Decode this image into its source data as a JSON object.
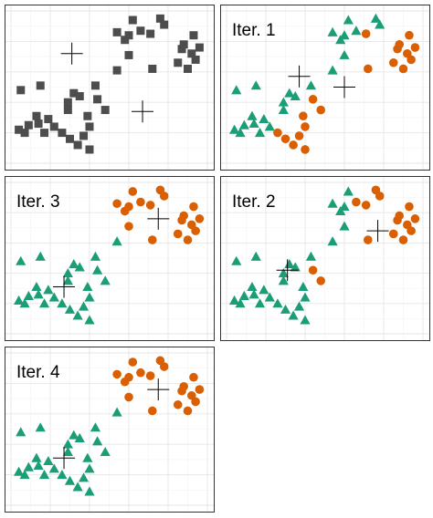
{
  "colors": {
    "unassigned": "#4d4d4d",
    "cluster_1": "#1b9e77",
    "cluster_2": "#d95f02",
    "centroid": "#000000"
  },
  "chart_data": [
    {
      "type": "scatter",
      "label": "",
      "xlim": [
        0,
        10
      ],
      "ylim": [
        0,
        10
      ],
      "grid": true,
      "points": [
        {
          "x": 0.4,
          "y": 2.2,
          "c": 0
        },
        {
          "x": 0.9,
          "y": 2.5,
          "c": 0
        },
        {
          "x": 1.4,
          "y": 2.6,
          "c": 0
        },
        {
          "x": 1.7,
          "y": 2.0,
          "c": 0
        },
        {
          "x": 1.3,
          "y": 3.1,
          "c": 0
        },
        {
          "x": 1.9,
          "y": 2.9,
          "c": 0
        },
        {
          "x": 0.7,
          "y": 2.0,
          "c": 0
        },
        {
          "x": 2.2,
          "y": 2.4,
          "c": 0
        },
        {
          "x": 2.6,
          "y": 2.0,
          "c": 0
        },
        {
          "x": 3.0,
          "y": 1.6,
          "c": 0
        },
        {
          "x": 3.4,
          "y": 1.2,
          "c": 0
        },
        {
          "x": 3.7,
          "y": 1.8,
          "c": 0
        },
        {
          "x": 4.0,
          "y": 0.9,
          "c": 0
        },
        {
          "x": 4.0,
          "y": 2.4,
          "c": 0
        },
        {
          "x": 2.9,
          "y": 3.5,
          "c": 0
        },
        {
          "x": 3.2,
          "y": 4.6,
          "c": 0
        },
        {
          "x": 2.9,
          "y": 4.0,
          "c": 0
        },
        {
          "x": 3.5,
          "y": 4.4,
          "c": 0
        },
        {
          "x": 3.9,
          "y": 3.1,
          "c": 0
        },
        {
          "x": 4.4,
          "y": 4.2,
          "c": 0
        },
        {
          "x": 4.8,
          "y": 3.5,
          "c": 0
        },
        {
          "x": 0.5,
          "y": 4.8,
          "c": 0
        },
        {
          "x": 1.5,
          "y": 5.1,
          "c": 0
        },
        {
          "x": 4.3,
          "y": 5.1,
          "c": 0
        },
        {
          "x": 5.4,
          "y": 6.1,
          "c": 0
        },
        {
          "x": 6.0,
          "y": 7.1,
          "c": 0
        },
        {
          "x": 5.8,
          "y": 8.1,
          "c": 0
        },
        {
          "x": 5.4,
          "y": 8.6,
          "c": 0
        },
        {
          "x": 6.6,
          "y": 8.7,
          "c": 0
        },
        {
          "x": 6.2,
          "y": 9.4,
          "c": 0
        },
        {
          "x": 7.1,
          "y": 8.5,
          "c": 0
        },
        {
          "x": 7.6,
          "y": 9.5,
          "c": 0
        },
        {
          "x": 7.8,
          "y": 9.1,
          "c": 0
        },
        {
          "x": 8.7,
          "y": 7.5,
          "c": 0
        },
        {
          "x": 8.5,
          "y": 6.6,
          "c": 0
        },
        {
          "x": 8.8,
          "y": 7.8,
          "c": 0
        },
        {
          "x": 9.3,
          "y": 8.4,
          "c": 0
        },
        {
          "x": 9.0,
          "y": 6.2,
          "c": 0
        },
        {
          "x": 9.2,
          "y": 7.2,
          "c": 0
        },
        {
          "x": 9.4,
          "y": 6.8,
          "c": 0
        },
        {
          "x": 9.6,
          "y": 7.6,
          "c": 0
        },
        {
          "x": 7.2,
          "y": 6.2,
          "c": 0
        },
        {
          "x": 6.0,
          "y": 8.4,
          "c": 0
        }
      ],
      "centroids": [
        {
          "x": 3.1,
          "y": 7.2
        },
        {
          "x": 6.7,
          "y": 3.4
        }
      ]
    },
    {
      "type": "scatter",
      "label": "Iter. 1",
      "xlim": [
        0,
        10
      ],
      "ylim": [
        0,
        10
      ],
      "grid": true,
      "points": [
        {
          "x": 0.4,
          "y": 2.2,
          "c": 1
        },
        {
          "x": 0.9,
          "y": 2.5,
          "c": 1
        },
        {
          "x": 1.4,
          "y": 2.6,
          "c": 1
        },
        {
          "x": 1.7,
          "y": 2.0,
          "c": 1
        },
        {
          "x": 1.3,
          "y": 3.1,
          "c": 1
        },
        {
          "x": 1.9,
          "y": 2.9,
          "c": 1
        },
        {
          "x": 0.7,
          "y": 2.0,
          "c": 1
        },
        {
          "x": 2.2,
          "y": 2.4,
          "c": 1
        },
        {
          "x": 2.6,
          "y": 2.0,
          "c": 2
        },
        {
          "x": 3.0,
          "y": 1.6,
          "c": 2
        },
        {
          "x": 3.4,
          "y": 1.2,
          "c": 2
        },
        {
          "x": 3.7,
          "y": 1.8,
          "c": 2
        },
        {
          "x": 4.0,
          "y": 0.9,
          "c": 2
        },
        {
          "x": 4.0,
          "y": 2.4,
          "c": 2
        },
        {
          "x": 2.9,
          "y": 3.5,
          "c": 1
        },
        {
          "x": 3.2,
          "y": 4.6,
          "c": 1
        },
        {
          "x": 2.9,
          "y": 4.0,
          "c": 1
        },
        {
          "x": 3.5,
          "y": 4.4,
          "c": 1
        },
        {
          "x": 3.9,
          "y": 3.1,
          "c": 2
        },
        {
          "x": 4.4,
          "y": 4.2,
          "c": 2
        },
        {
          "x": 4.8,
          "y": 3.5,
          "c": 2
        },
        {
          "x": 0.5,
          "y": 4.8,
          "c": 1
        },
        {
          "x": 1.5,
          "y": 5.1,
          "c": 1
        },
        {
          "x": 4.3,
          "y": 5.1,
          "c": 1
        },
        {
          "x": 5.4,
          "y": 6.1,
          "c": 1
        },
        {
          "x": 6.0,
          "y": 7.1,
          "c": 1
        },
        {
          "x": 5.8,
          "y": 8.1,
          "c": 1
        },
        {
          "x": 5.4,
          "y": 8.6,
          "c": 1
        },
        {
          "x": 6.6,
          "y": 8.7,
          "c": 1
        },
        {
          "x": 6.2,
          "y": 9.4,
          "c": 1
        },
        {
          "x": 7.1,
          "y": 8.5,
          "c": 2
        },
        {
          "x": 7.6,
          "y": 9.5,
          "c": 1
        },
        {
          "x": 7.8,
          "y": 9.1,
          "c": 1
        },
        {
          "x": 8.7,
          "y": 7.5,
          "c": 2
        },
        {
          "x": 8.5,
          "y": 6.6,
          "c": 2
        },
        {
          "x": 8.8,
          "y": 7.8,
          "c": 2
        },
        {
          "x": 9.3,
          "y": 8.4,
          "c": 2
        },
        {
          "x": 9.0,
          "y": 6.2,
          "c": 2
        },
        {
          "x": 9.2,
          "y": 7.2,
          "c": 2
        },
        {
          "x": 9.4,
          "y": 6.8,
          "c": 2
        },
        {
          "x": 9.6,
          "y": 7.6,
          "c": 2
        },
        {
          "x": 7.2,
          "y": 6.2,
          "c": 2
        },
        {
          "x": 6.0,
          "y": 8.4,
          "c": 1
        }
      ],
      "centroids": [
        {
          "x": 3.7,
          "y": 5.7
        },
        {
          "x": 6.0,
          "y": 5.0
        }
      ]
    },
    {
      "type": "scatter",
      "label": "Iter. 3",
      "xlim": [
        0,
        10
      ],
      "ylim": [
        0,
        10
      ],
      "grid": true,
      "points": [
        {
          "x": 0.4,
          "y": 2.2,
          "c": 1
        },
        {
          "x": 0.9,
          "y": 2.5,
          "c": 1
        },
        {
          "x": 1.4,
          "y": 2.6,
          "c": 1
        },
        {
          "x": 1.7,
          "y": 2.0,
          "c": 1
        },
        {
          "x": 1.3,
          "y": 3.1,
          "c": 1
        },
        {
          "x": 1.9,
          "y": 2.9,
          "c": 1
        },
        {
          "x": 0.7,
          "y": 2.0,
          "c": 1
        },
        {
          "x": 2.2,
          "y": 2.4,
          "c": 1
        },
        {
          "x": 2.6,
          "y": 2.0,
          "c": 1
        },
        {
          "x": 3.0,
          "y": 1.6,
          "c": 1
        },
        {
          "x": 3.4,
          "y": 1.2,
          "c": 1
        },
        {
          "x": 3.7,
          "y": 1.8,
          "c": 1
        },
        {
          "x": 4.0,
          "y": 0.9,
          "c": 1
        },
        {
          "x": 4.0,
          "y": 2.4,
          "c": 1
        },
        {
          "x": 2.9,
          "y": 3.5,
          "c": 1
        },
        {
          "x": 3.2,
          "y": 4.6,
          "c": 1
        },
        {
          "x": 2.9,
          "y": 4.0,
          "c": 1
        },
        {
          "x": 3.5,
          "y": 4.4,
          "c": 1
        },
        {
          "x": 3.9,
          "y": 3.1,
          "c": 1
        },
        {
          "x": 4.4,
          "y": 4.2,
          "c": 1
        },
        {
          "x": 4.8,
          "y": 3.5,
          "c": 1
        },
        {
          "x": 0.5,
          "y": 4.8,
          "c": 1
        },
        {
          "x": 1.5,
          "y": 5.1,
          "c": 1
        },
        {
          "x": 4.3,
          "y": 5.1,
          "c": 1
        },
        {
          "x": 5.4,
          "y": 6.1,
          "c": 1
        },
        {
          "x": 6.0,
          "y": 7.1,
          "c": 2
        },
        {
          "x": 5.8,
          "y": 8.1,
          "c": 2
        },
        {
          "x": 5.4,
          "y": 8.6,
          "c": 2
        },
        {
          "x": 6.6,
          "y": 8.7,
          "c": 2
        },
        {
          "x": 6.2,
          "y": 9.4,
          "c": 2
        },
        {
          "x": 7.1,
          "y": 8.5,
          "c": 2
        },
        {
          "x": 7.6,
          "y": 9.5,
          "c": 2
        },
        {
          "x": 7.8,
          "y": 9.1,
          "c": 2
        },
        {
          "x": 8.7,
          "y": 7.5,
          "c": 2
        },
        {
          "x": 8.5,
          "y": 6.6,
          "c": 2
        },
        {
          "x": 8.8,
          "y": 7.8,
          "c": 2
        },
        {
          "x": 9.3,
          "y": 8.4,
          "c": 2
        },
        {
          "x": 9.0,
          "y": 6.2,
          "c": 2
        },
        {
          "x": 9.2,
          "y": 7.2,
          "c": 2
        },
        {
          "x": 9.4,
          "y": 6.8,
          "c": 2
        },
        {
          "x": 9.6,
          "y": 7.6,
          "c": 2
        },
        {
          "x": 7.2,
          "y": 6.2,
          "c": 2
        },
        {
          "x": 6.0,
          "y": 8.4,
          "c": 2
        }
      ],
      "centroids": [
        {
          "x": 2.7,
          "y": 3.1
        },
        {
          "x": 7.5,
          "y": 7.6
        }
      ]
    },
    {
      "type": "scatter",
      "label": "Iter. 2",
      "xlim": [
        0,
        10
      ],
      "ylim": [
        0,
        10
      ],
      "grid": true,
      "points": [
        {
          "x": 0.4,
          "y": 2.2,
          "c": 1
        },
        {
          "x": 0.9,
          "y": 2.5,
          "c": 1
        },
        {
          "x": 1.4,
          "y": 2.6,
          "c": 1
        },
        {
          "x": 1.7,
          "y": 2.0,
          "c": 1
        },
        {
          "x": 1.3,
          "y": 3.1,
          "c": 1
        },
        {
          "x": 1.9,
          "y": 2.9,
          "c": 1
        },
        {
          "x": 0.7,
          "y": 2.0,
          "c": 1
        },
        {
          "x": 2.2,
          "y": 2.4,
          "c": 1
        },
        {
          "x": 2.6,
          "y": 2.0,
          "c": 1
        },
        {
          "x": 3.0,
          "y": 1.6,
          "c": 1
        },
        {
          "x": 3.4,
          "y": 1.2,
          "c": 1
        },
        {
          "x": 3.7,
          "y": 1.8,
          "c": 1
        },
        {
          "x": 4.0,
          "y": 0.9,
          "c": 1
        },
        {
          "x": 4.0,
          "y": 2.4,
          "c": 1
        },
        {
          "x": 2.9,
          "y": 3.5,
          "c": 1
        },
        {
          "x": 3.2,
          "y": 4.6,
          "c": 1
        },
        {
          "x": 2.9,
          "y": 4.0,
          "c": 1
        },
        {
          "x": 3.5,
          "y": 4.4,
          "c": 1
        },
        {
          "x": 3.9,
          "y": 3.1,
          "c": 1
        },
        {
          "x": 4.4,
          "y": 4.2,
          "c": 2
        },
        {
          "x": 4.8,
          "y": 3.5,
          "c": 2
        },
        {
          "x": 0.5,
          "y": 4.8,
          "c": 1
        },
        {
          "x": 1.5,
          "y": 5.1,
          "c": 1
        },
        {
          "x": 4.3,
          "y": 5.1,
          "c": 1
        },
        {
          "x": 5.4,
          "y": 6.1,
          "c": 1
        },
        {
          "x": 6.0,
          "y": 7.1,
          "c": 1
        },
        {
          "x": 5.8,
          "y": 8.1,
          "c": 1
        },
        {
          "x": 5.4,
          "y": 8.6,
          "c": 1
        },
        {
          "x": 6.6,
          "y": 8.7,
          "c": 2
        },
        {
          "x": 6.2,
          "y": 9.4,
          "c": 1
        },
        {
          "x": 7.1,
          "y": 8.5,
          "c": 2
        },
        {
          "x": 7.6,
          "y": 9.5,
          "c": 2
        },
        {
          "x": 7.8,
          "y": 9.1,
          "c": 2
        },
        {
          "x": 8.7,
          "y": 7.5,
          "c": 2
        },
        {
          "x": 8.5,
          "y": 6.6,
          "c": 2
        },
        {
          "x": 8.8,
          "y": 7.8,
          "c": 2
        },
        {
          "x": 9.3,
          "y": 8.4,
          "c": 2
        },
        {
          "x": 9.0,
          "y": 6.2,
          "c": 2
        },
        {
          "x": 9.2,
          "y": 7.2,
          "c": 2
        },
        {
          "x": 9.4,
          "y": 6.8,
          "c": 2
        },
        {
          "x": 9.6,
          "y": 7.6,
          "c": 2
        },
        {
          "x": 7.2,
          "y": 6.2,
          "c": 2
        },
        {
          "x": 6.0,
          "y": 8.4,
          "c": 1
        }
      ],
      "centroids": [
        {
          "x": 3.1,
          "y": 4.2
        },
        {
          "x": 7.7,
          "y": 6.8
        }
      ]
    },
    {
      "type": "scatter",
      "label": "Iter. 4",
      "xlim": [
        0,
        10
      ],
      "ylim": [
        0,
        10
      ],
      "grid": true,
      "points": [
        {
          "x": 0.4,
          "y": 2.2,
          "c": 1
        },
        {
          "x": 0.9,
          "y": 2.5,
          "c": 1
        },
        {
          "x": 1.4,
          "y": 2.6,
          "c": 1
        },
        {
          "x": 1.7,
          "y": 2.0,
          "c": 1
        },
        {
          "x": 1.3,
          "y": 3.1,
          "c": 1
        },
        {
          "x": 1.9,
          "y": 2.9,
          "c": 1
        },
        {
          "x": 0.7,
          "y": 2.0,
          "c": 1
        },
        {
          "x": 2.2,
          "y": 2.4,
          "c": 1
        },
        {
          "x": 2.6,
          "y": 2.0,
          "c": 1
        },
        {
          "x": 3.0,
          "y": 1.6,
          "c": 1
        },
        {
          "x": 3.4,
          "y": 1.2,
          "c": 1
        },
        {
          "x": 3.7,
          "y": 1.8,
          "c": 1
        },
        {
          "x": 4.0,
          "y": 0.9,
          "c": 1
        },
        {
          "x": 4.0,
          "y": 2.4,
          "c": 1
        },
        {
          "x": 2.9,
          "y": 3.5,
          "c": 1
        },
        {
          "x": 3.2,
          "y": 4.6,
          "c": 1
        },
        {
          "x": 2.9,
          "y": 4.0,
          "c": 1
        },
        {
          "x": 3.5,
          "y": 4.4,
          "c": 1
        },
        {
          "x": 3.9,
          "y": 3.1,
          "c": 1
        },
        {
          "x": 4.4,
          "y": 4.2,
          "c": 1
        },
        {
          "x": 4.8,
          "y": 3.5,
          "c": 1
        },
        {
          "x": 0.5,
          "y": 4.8,
          "c": 1
        },
        {
          "x": 1.5,
          "y": 5.1,
          "c": 1
        },
        {
          "x": 4.3,
          "y": 5.1,
          "c": 1
        },
        {
          "x": 5.4,
          "y": 6.1,
          "c": 1
        },
        {
          "x": 6.0,
          "y": 7.1,
          "c": 2
        },
        {
          "x": 5.8,
          "y": 8.1,
          "c": 2
        },
        {
          "x": 5.4,
          "y": 8.6,
          "c": 2
        },
        {
          "x": 6.6,
          "y": 8.7,
          "c": 2
        },
        {
          "x": 6.2,
          "y": 9.4,
          "c": 2
        },
        {
          "x": 7.1,
          "y": 8.5,
          "c": 2
        },
        {
          "x": 7.6,
          "y": 9.5,
          "c": 2
        },
        {
          "x": 7.8,
          "y": 9.1,
          "c": 2
        },
        {
          "x": 8.7,
          "y": 7.5,
          "c": 2
        },
        {
          "x": 8.5,
          "y": 6.6,
          "c": 2
        },
        {
          "x": 8.8,
          "y": 7.8,
          "c": 2
        },
        {
          "x": 9.3,
          "y": 8.4,
          "c": 2
        },
        {
          "x": 9.0,
          "y": 6.2,
          "c": 2
        },
        {
          "x": 9.2,
          "y": 7.2,
          "c": 2
        },
        {
          "x": 9.4,
          "y": 6.8,
          "c": 2
        },
        {
          "x": 9.6,
          "y": 7.6,
          "c": 2
        },
        {
          "x": 7.2,
          "y": 6.2,
          "c": 2
        },
        {
          "x": 6.0,
          "y": 8.4,
          "c": 2
        }
      ],
      "centroids": [
        {
          "x": 2.7,
          "y": 3.1
        },
        {
          "x": 7.5,
          "y": 7.6
        }
      ]
    }
  ]
}
